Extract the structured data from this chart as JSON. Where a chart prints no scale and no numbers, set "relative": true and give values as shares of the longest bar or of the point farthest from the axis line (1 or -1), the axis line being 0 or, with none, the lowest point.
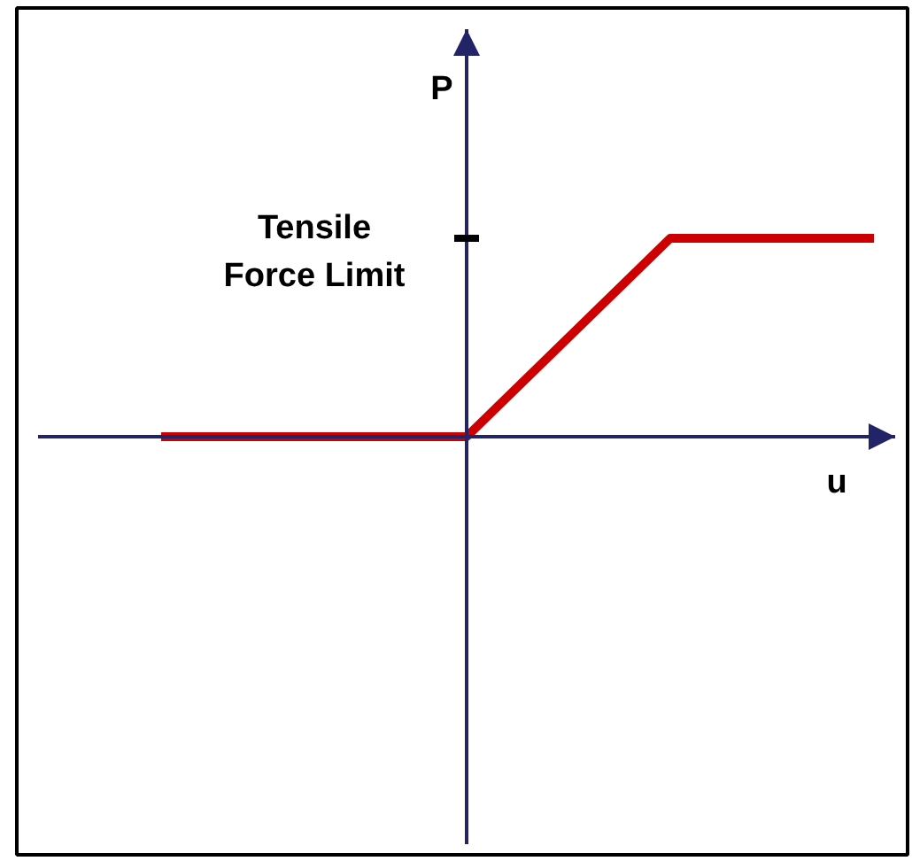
{
  "chart_data": {
    "type": "line",
    "relative": true,
    "xlabel": "u",
    "ylabel": "P",
    "categories": [
      null,
      null,
      null,
      null,
      null,
      null,
      null,
      null,
      null
    ],
    "series": [
      {
        "color": "#cc0000",
        "values": [
          null,
          0,
          0,
          0,
          0,
          0.5,
          1,
          1,
          1
        ]
      }
    ],
    "annotations": [
      "Tensile\nForce Limit"
    ],
    "line_style": "solid"
  }
}
